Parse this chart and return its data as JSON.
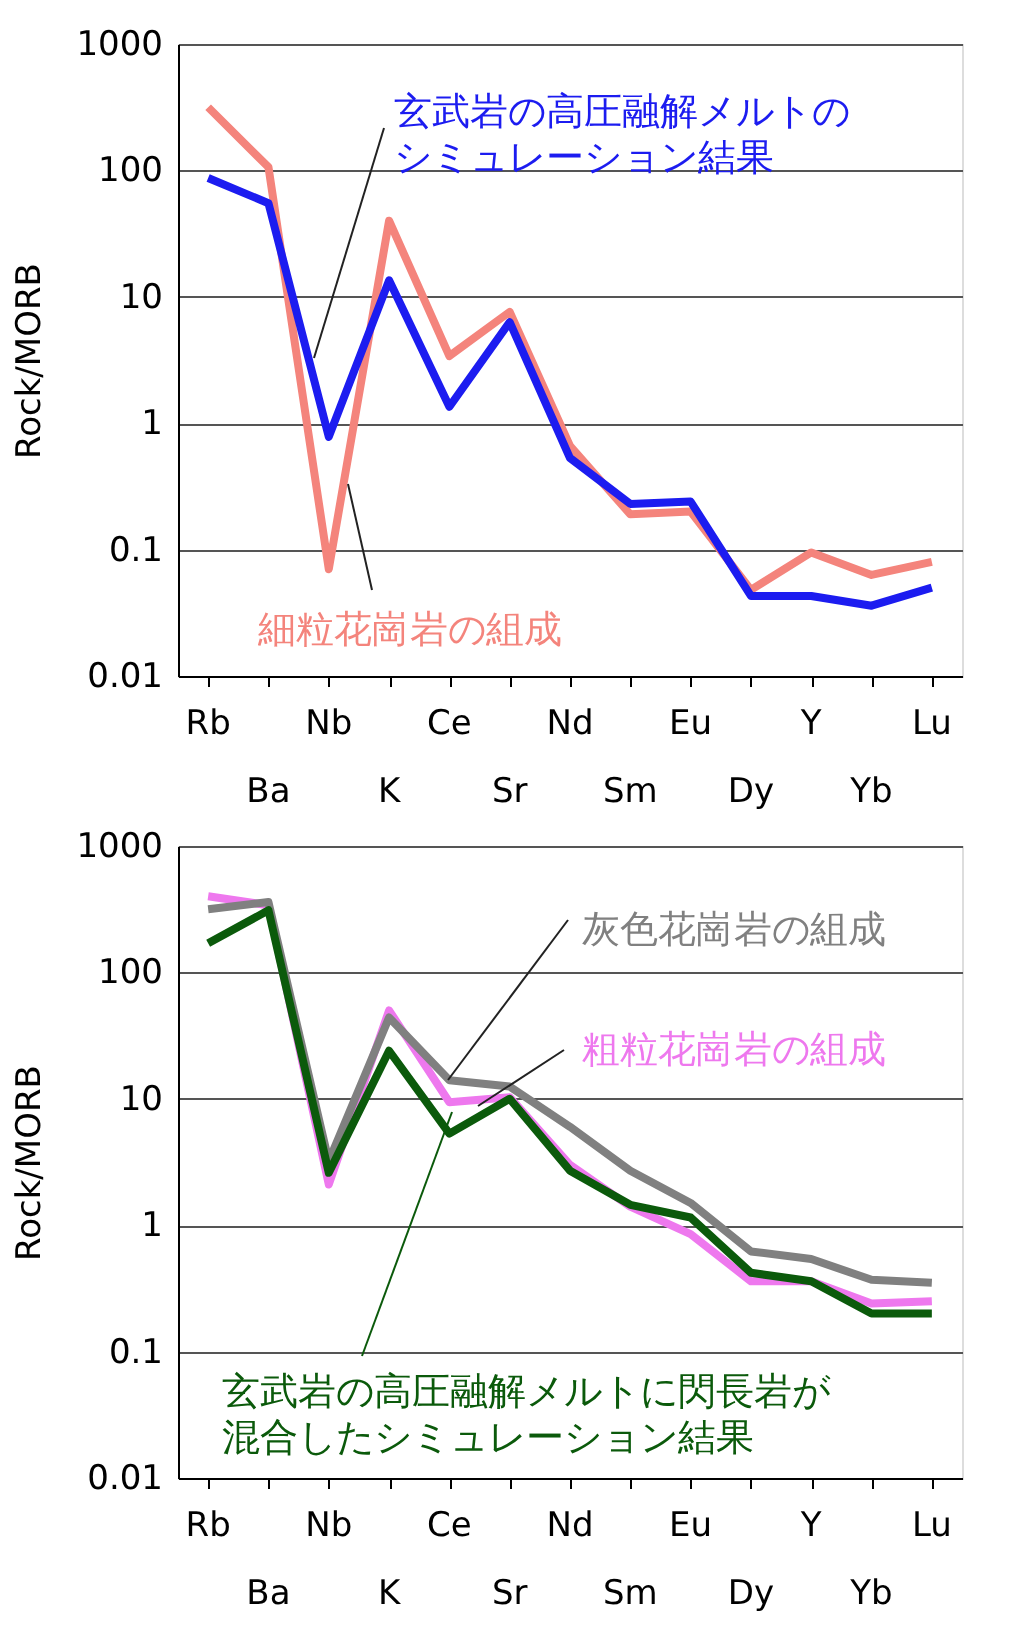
{
  "chart_data": [
    {
      "type": "line",
      "ylabel": "Rock/MORB",
      "categories": [
        "Rb",
        "Ba",
        "Nb",
        "K",
        "Ce",
        "Sr",
        "Nd",
        "Sm",
        "Eu",
        "Dy",
        "Y",
        "Yb",
        "Lu"
      ],
      "log": true,
      "ylim": [
        0.01,
        1000
      ],
      "yticks": [
        0.01,
        0.1,
        1,
        10,
        100,
        1000
      ],
      "grid": "y",
      "legend": false,
      "marker": "none",
      "line_style": "solid",
      "series": [
        {
          "name": "細粒花崗岩の組成",
          "color": "#f4847c",
          "values": [
            316,
            106,
            0.07,
            40,
            3.4,
            7.6,
            0.66,
            0.19,
            0.2,
            0.048,
            0.095,
            0.063,
            0.08
          ]
        },
        {
          "name": "玄武岩の高圧融解メルトのシミュレーション結果",
          "color": "#1c1cf0",
          "values": [
            87,
            55,
            0.78,
            13.5,
            1.35,
            6.3,
            0.53,
            0.23,
            0.24,
            0.043,
            0.043,
            0.036,
            0.05
          ]
        }
      ]
    },
    {
      "type": "line",
      "ylabel": "Rock/MORB",
      "categories": [
        "Rb",
        "Ba",
        "Nb",
        "K",
        "Ce",
        "Sr",
        "Nd",
        "Sm",
        "Eu",
        "Dy",
        "Y",
        "Yb",
        "Lu"
      ],
      "log": true,
      "ylim": [
        0.01,
        1000
      ],
      "yticks": [
        0.01,
        0.1,
        1,
        10,
        100,
        1000
      ],
      "grid": "y",
      "legend": false,
      "marker": "none",
      "line_style": "solid",
      "series": [
        {
          "name": "粗粒花崗岩の組成",
          "color": "#ee78ee",
          "values": [
            400,
            340,
            2.1,
            50,
            9.4,
            10.3,
            3,
            1.4,
            0.85,
            0.36,
            0.36,
            0.24,
            0.25
          ]
        },
        {
          "name": "灰色花崗岩の組成",
          "color": "#808080",
          "values": [
            316,
            360,
            3.2,
            44,
            14,
            12.5,
            6,
            2.7,
            1.5,
            0.62,
            0.54,
            0.37,
            0.35
          ]
        },
        {
          "name": "玄武岩の高圧融解メルトに閃長岩が混合したシミュレーション結果",
          "color": "#0b5a0b",
          "values": [
            170,
            310,
            2.6,
            24,
            5.3,
            10,
            2.7,
            1.45,
            1.15,
            0.42,
            0.36,
            0.2,
            0.2
          ]
        }
      ]
    }
  ]
}
